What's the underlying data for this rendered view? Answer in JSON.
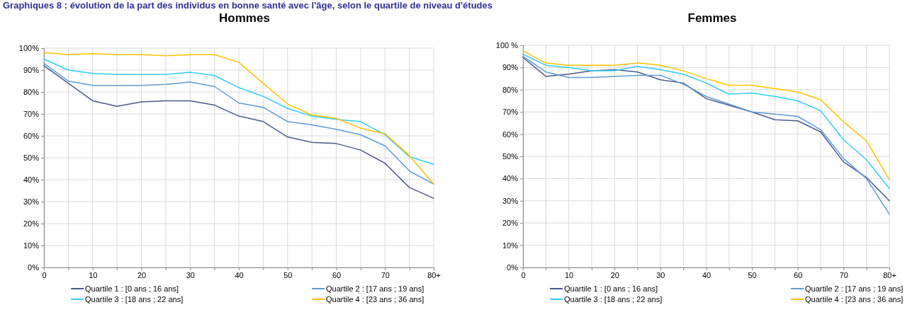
{
  "chart_data": [
    {
      "type": "line",
      "title": "Hommes",
      "annotations": [
        "Graphiques 8 : évolution de la part des individus en bonne santé avec l'âge, selon le quartile de niveau d'études"
      ],
      "categories": [
        "0",
        null,
        "10",
        null,
        "20",
        null,
        "30",
        null,
        "40",
        null,
        "50",
        null,
        "60",
        null,
        "70",
        null,
        "80+"
      ],
      "series": [
        {
          "name": "Quartile 1 : [0 ans ; 16 ans]",
          "color": "#4a5a8a",
          "values": [
            92,
            84,
            76,
            73.5,
            75.5,
            76,
            76,
            74,
            69,
            66.5,
            59.5,
            57,
            56.5,
            53.5,
            47.5,
            36.5,
            31.5
          ]
        },
        {
          "name": "Quartile 2 : [17 ans ; 19 ans]",
          "color": "#5b9bd5",
          "values": [
            93,
            85,
            83,
            83,
            83,
            83.5,
            84.5,
            82.5,
            75,
            73,
            66.5,
            65,
            63,
            60.5,
            55.5,
            44,
            38
          ]
        },
        {
          "name": "Quartile 3 : [18 ans ; 22 ans]",
          "color": "#33ccf5",
          "values": [
            95,
            90,
            88.5,
            88,
            88,
            88,
            89,
            87.5,
            82,
            78,
            72.5,
            69,
            67.5,
            66.5,
            60.5,
            50.5,
            47
          ]
        },
        {
          "name": "Quartile 4 : [23 ans ; 36 ans]",
          "color": "#ffc000",
          "values": [
            98,
            97,
            97.5,
            97,
            97,
            96.5,
            97,
            97,
            93.5,
            84,
            74.5,
            69.5,
            68,
            63.5,
            61,
            51,
            38
          ]
        }
      ],
      "ylim": [
        0,
        100
      ],
      "yticks": [
        {
          "value": 0,
          "label": "0%"
        },
        {
          "value": 10,
          "label": "10%"
        },
        {
          "value": 20,
          "label": "20%"
        },
        {
          "value": 30,
          "label": "30%"
        },
        {
          "value": 40,
          "label": "40%"
        },
        {
          "value": 50,
          "label": "50%"
        },
        {
          "value": 60,
          "label": "60%"
        },
        {
          "value": 70,
          "label": "70%"
        },
        {
          "value": 80,
          "label": "80%"
        },
        {
          "value": 90,
          "label": "90%"
        },
        {
          "value": 100,
          "label": "100%"
        }
      ],
      "grid": true,
      "legend": "bottom"
    },
    {
      "type": "line",
      "title": "Femmes",
      "categories": [
        "0",
        null,
        "10",
        null,
        "20",
        null,
        "30",
        null,
        "40",
        null,
        "50",
        null,
        "60",
        null,
        "70",
        null,
        "80+"
      ],
      "series": [
        {
          "name": "Quartile 1 : [0 ans ; 16 ans]",
          "color": "#4a5a8a",
          "values": [
            94.5,
            86,
            87,
            88.5,
            89,
            88,
            84.5,
            83,
            76,
            73,
            70,
            66.5,
            66,
            61,
            47.5,
            40.5,
            30
          ]
        },
        {
          "name": "Quartile 2 : [17 ans ; 19 ans]",
          "color": "#5b9bd5",
          "values": [
            95,
            88,
            85.5,
            85.5,
            86,
            86.5,
            86.5,
            82.5,
            77,
            73.5,
            70,
            69,
            68,
            62,
            49,
            40,
            24
          ]
        },
        {
          "name": "Quartile 3 : [18 ans ; 22 ans]",
          "color": "#33ccf5",
          "values": [
            96,
            91,
            90,
            88.5,
            88.5,
            90.5,
            89,
            87,
            83,
            78,
            78.5,
            77,
            75,
            70.5,
            57.5,
            48.5,
            35.5
          ]
        },
        {
          "name": "Quartile 4 : [23 ans ; 36 ans]",
          "color": "#ffc000",
          "values": [
            97.5,
            92,
            91,
            91,
            91,
            92,
            91,
            88.5,
            85,
            82,
            82,
            80.5,
            79,
            75.5,
            65.5,
            57,
            39.5
          ]
        }
      ],
      "ylim": [
        0,
        100
      ],
      "yticks": [
        {
          "value": 0,
          "label": "0%"
        },
        {
          "value": 10,
          "label": "10%"
        },
        {
          "value": 20,
          "label": "20%"
        },
        {
          "value": 30,
          "label": "30%"
        },
        {
          "value": 40,
          "label": "40%"
        },
        {
          "value": 50,
          "label": "50%"
        },
        {
          "value": 60,
          "label": "60%"
        },
        {
          "value": 70,
          "label": "70%"
        },
        {
          "value": 80,
          "label": "80%"
        },
        {
          "value": 90,
          "label": "90%"
        },
        {
          "value": 100,
          "label": "100 %"
        }
      ],
      "grid": true,
      "legend": "bottom"
    }
  ]
}
